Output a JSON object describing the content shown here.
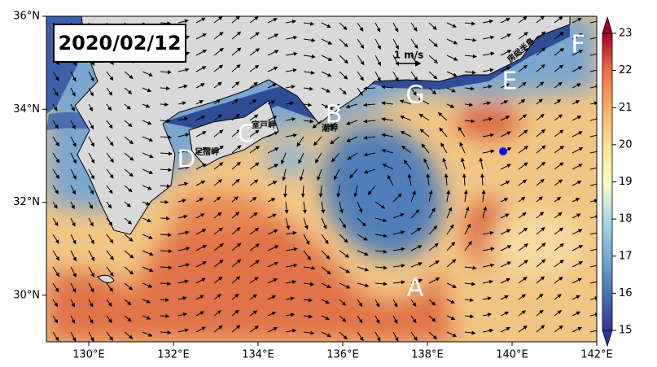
{
  "map": {
    "date_label": "2020/02/12",
    "lon_lim": [
      129,
      142
    ],
    "lat_lim": [
      29,
      36
    ],
    "lon_ticks": [
      {
        "value": 130,
        "label": "130°E"
      },
      {
        "value": 132,
        "label": "132°E"
      },
      {
        "value": 134,
        "label": "134°E"
      },
      {
        "value": 136,
        "label": "136°E"
      },
      {
        "value": 138,
        "label": "138°E"
      },
      {
        "value": 140,
        "label": "140°E"
      },
      {
        "value": 142,
        "label": "142°E"
      }
    ],
    "lat_ticks": [
      {
        "value": 30,
        "label": "30°N"
      },
      {
        "value": 32,
        "label": "32°N"
      },
      {
        "value": 34,
        "label": "34°N"
      },
      {
        "value": 36,
        "label": "36°N"
      }
    ],
    "colorbar": {
      "lim": [
        15,
        23
      ],
      "ticks": [
        15,
        16,
        17,
        18,
        19,
        20,
        21,
        22,
        23
      ]
    },
    "scale_label": "1 m/s",
    "region_labels": [
      "A",
      "B",
      "C",
      "D",
      "E",
      "F",
      "G"
    ],
    "place_labels": [
      "足摺岬",
      "室戸岬",
      "潮岬",
      "房総半島"
    ]
  }
}
